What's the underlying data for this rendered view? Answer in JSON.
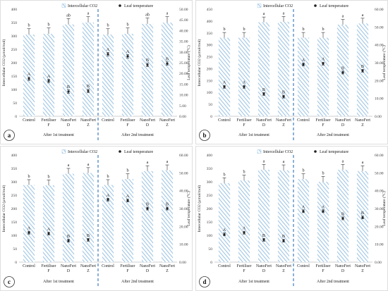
{
  "figure": {
    "legend_bar": "Intercellular CO2",
    "legend_point": "Leaf temperature",
    "colors": {
      "bar_hatch": "#9fc5e4",
      "point": "#222222",
      "divider": "#2e6fb7",
      "axis": "#bfbfbf"
    }
  },
  "chart_data": [
    {
      "type": "bar",
      "panel_label": "a",
      "groups": [
        "After 1st treatment",
        "After 2nd treatment"
      ],
      "categories": [
        "Control",
        "Fertiliser F",
        "NanoFert D",
        "NanoFert Z",
        "Control",
        "Fertiliser F",
        "NanoFert D",
        "NanoFert Z"
      ],
      "ylabel": "Intercellular CO2 (µmol/mol)",
      "ylabel_right": "Leaf temperature (°C)",
      "ylim": [
        0,
        400
      ],
      "ylim_right": [
        0,
        50
      ],
      "yticks": [
        "0",
        "50",
        "100",
        "150",
        "200",
        "250",
        "300",
        "350",
        "400"
      ],
      "yticks_right": [
        "0.00",
        "5.00",
        "10.00",
        "15.00",
        "20.00",
        "25.00",
        "30.00",
        "35.00",
        "40.00",
        "45.00",
        "50.00"
      ],
      "series": [
        {
          "name": "Intercellular CO2",
          "values": [
            305,
            308,
            343,
            350,
            305,
            308,
            345,
            350
          ],
          "errors": [
            22,
            22,
            22,
            22,
            22,
            22,
            22,
            22
          ],
          "letters": [
            "b",
            "b",
            "ab",
            "a",
            "b",
            "b",
            "ab",
            "a"
          ]
        },
        {
          "name": "Leaf temperature",
          "values": [
            17.5,
            16.5,
            11.5,
            11.8,
            29.0,
            28.0,
            24.0,
            24.6
          ],
          "errors": [
            0.8,
            0.8,
            0.8,
            0.8,
            0.8,
            0.8,
            0.8,
            0.8
          ],
          "letters": [
            "A",
            "A",
            "B",
            "B",
            "A",
            "A",
            "B",
            "B"
          ]
        }
      ]
    },
    {
      "type": "bar",
      "panel_label": "b",
      "groups": [
        "After 1st treatment",
        "After 2nd treatment"
      ],
      "categories": [
        "Control",
        "Fertiliser F",
        "NanoFert D",
        "NanoFert Z",
        "Control",
        "Fertiliser F",
        "NanoFert D",
        "NanoFert Z"
      ],
      "ylabel": "Intercellular CO2 (µmol/mol)",
      "ylabel_right": "Leaf temperature (°C)",
      "ylim": [
        0,
        450
      ],
      "ylim_right": [
        0,
        60
      ],
      "yticks": [
        "0",
        "50",
        "100",
        "150",
        "200",
        "250",
        "300",
        "350",
        "400",
        "450"
      ],
      "yticks_right": [
        "0.00",
        "10.00",
        "20.00",
        "30.00",
        "40.00",
        "50.00",
        "60.00"
      ],
      "series": [
        {
          "name": "Intercellular CO2",
          "values": [
            330,
            330,
            395,
            397,
            330,
            330,
            385,
            390
          ],
          "errors": [
            22,
            22,
            22,
            22,
            22,
            22,
            22,
            22
          ],
          "letters": [
            "b",
            "b",
            "a",
            "a",
            "b",
            "b",
            "a",
            "a"
          ]
        },
        {
          "name": "Leaf temperature",
          "values": [
            16.5,
            16.5,
            12.5,
            11.0,
            29.0,
            29.5,
            24.5,
            25.5
          ],
          "errors": [
            0.8,
            0.8,
            0.8,
            0.8,
            0.8,
            0.8,
            0.8,
            0.8
          ],
          "letters": [
            "A",
            "A",
            "B",
            "B",
            "A",
            "A",
            "B",
            "B"
          ]
        }
      ]
    },
    {
      "type": "bar",
      "panel_label": "c",
      "groups": [
        "After 1st treatment",
        "After 2nd treatment"
      ],
      "categories": [
        "Control",
        "Fertiliser F",
        "NanoFert D",
        "NanoFert Z",
        "Control",
        "Fertiliser F",
        "NanoFert D",
        "NanoFert Z"
      ],
      "ylabel": "Intercellular CO2 (µmol/mol)",
      "ylabel_right": "Leaf temperature (°C)",
      "ylim": [
        0,
        400
      ],
      "ylim_right": [
        0,
        60
      ],
      "yticks": [
        "0",
        "50",
        "100",
        "150",
        "200",
        "250",
        "300",
        "350",
        "400"
      ],
      "yticks_right": [
        "0.00",
        "10.00",
        "20.00",
        "30.00",
        "40.00",
        "50.00",
        "60.00"
      ],
      "series": [
        {
          "name": "Intercellular CO2",
          "values": [
            288,
            287,
            330,
            333,
            288,
            310,
            340,
            343
          ],
          "errors": [
            20,
            20,
            20,
            20,
            20,
            20,
            20,
            20
          ],
          "letters": [
            "b",
            "b",
            "a",
            "a",
            "b",
            "b",
            "a",
            "a"
          ]
        },
        {
          "name": "Leaf temperature",
          "values": [
            16.5,
            16.0,
            12.0,
            12.5,
            35.0,
            34.5,
            30.0,
            30.0
          ],
          "errors": [
            0.8,
            0.8,
            0.8,
            0.8,
            0.8,
            0.8,
            0.8,
            0.8
          ],
          "letters": [
            "A",
            "A",
            "B",
            "B",
            "A",
            "A",
            "B",
            "B"
          ]
        }
      ]
    },
    {
      "type": "bar",
      "panel_label": "d",
      "groups": [
        "After 1st treatment",
        "After 2nd treatment"
      ],
      "categories": [
        "Control",
        "Fertiliser F",
        "NanoFert D",
        "NanoFert Z",
        "Control",
        "Fertiliser F",
        "NanoFert D",
        "NanoFert Z"
      ],
      "ylabel": "Intercellular CO2 (µmol/mol)",
      "ylabel_right": "Leaf temperature (°C)",
      "ylim": [
        0,
        400
      ],
      "ylim_right": [
        0,
        60
      ],
      "yticks": [
        "0",
        "50",
        "100",
        "150",
        "200",
        "250",
        "300",
        "350",
        "400"
      ],
      "yticks_right": [
        "0.00",
        "10.00",
        "20.00",
        "30.00",
        "40.00",
        "50.00",
        "60.00"
      ],
      "series": [
        {
          "name": "Intercellular CO2",
          "values": [
            295,
            305,
            345,
            343,
            310,
            300,
            345,
            340
          ],
          "errors": [
            20,
            20,
            20,
            20,
            20,
            20,
            20,
            20
          ],
          "letters": [
            "b",
            "b",
            "a",
            "a",
            "b",
            "b",
            "a",
            "a"
          ]
        },
        {
          "name": "Leaf temperature",
          "values": [
            15.5,
            16.5,
            12.5,
            12.0,
            28.5,
            28.5,
            24.5,
            25.0
          ],
          "errors": [
            0.8,
            0.8,
            0.8,
            0.8,
            0.8,
            0.8,
            0.8,
            0.8
          ],
          "letters": [
            "A",
            "A",
            "B",
            "B",
            "A",
            "A",
            "B",
            "B"
          ]
        }
      ]
    }
  ]
}
